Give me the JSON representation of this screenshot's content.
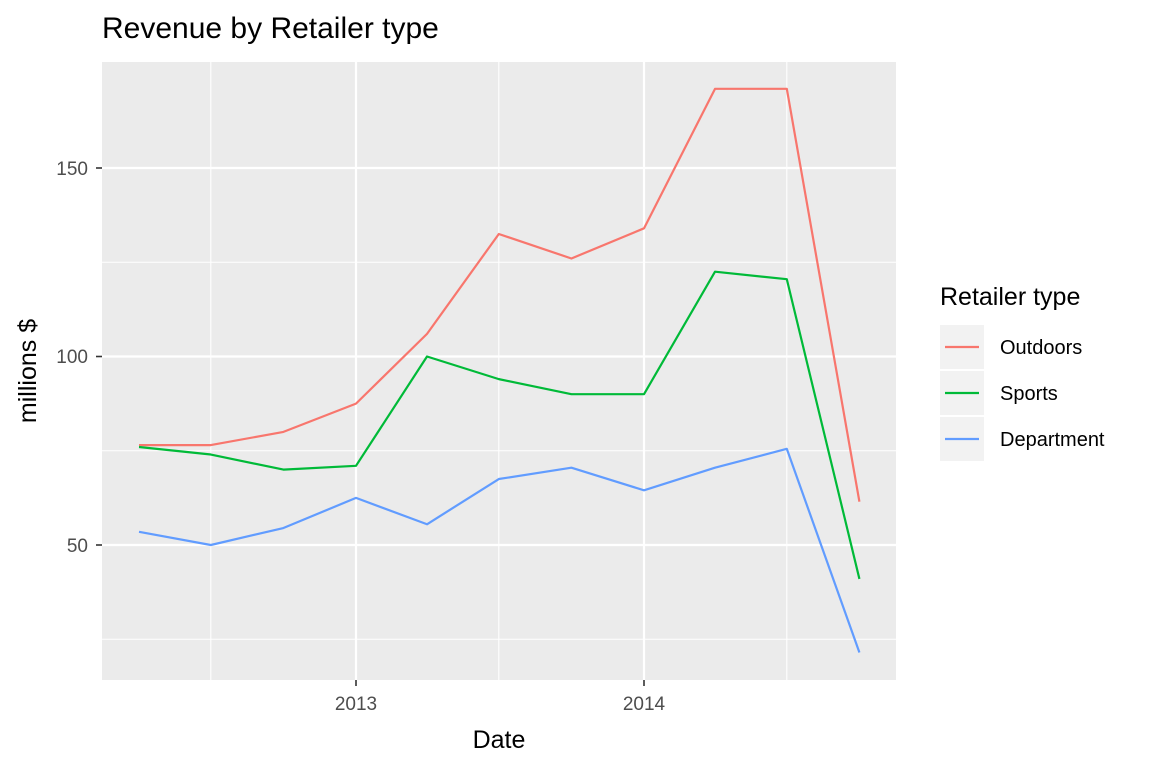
{
  "chart_data": {
    "type": "line",
    "title": "Revenue by Retailer type",
    "xlabel": "Date",
    "ylabel": "millions $",
    "x_tick_labels": [
      "2013",
      "2014"
    ],
    "y_tick_labels": [
      "50",
      "100",
      "150"
    ],
    "legend_title": "Retailer type",
    "legend_position": "right",
    "grid": true,
    "ylim": [
      17,
      172
    ],
    "x": [
      "2012-04-01",
      "2012-07-01",
      "2012-10-01",
      "2013-01-01",
      "2013-04-01",
      "2013-07-01",
      "2013-10-01",
      "2014-01-01",
      "2014-04-01",
      "2014-07-01",
      "2014-10-01"
    ],
    "series": [
      {
        "name": "Outdoors",
        "color": "#F8766D",
        "values": [
          76.5,
          76.5,
          80,
          87.5,
          106,
          132.5,
          126,
          134,
          171,
          171,
          61.5
        ]
      },
      {
        "name": "Sports",
        "color": "#00BA38",
        "values": [
          76,
          74,
          70,
          71,
          100,
          94,
          90,
          90,
          122.5,
          120.5,
          41
        ]
      },
      {
        "name": "Department",
        "color": "#619CFF",
        "values": [
          53.5,
          50,
          54.5,
          62.5,
          55.5,
          67.5,
          70.5,
          64.5,
          70.5,
          75.5,
          21.5
        ]
      }
    ]
  }
}
